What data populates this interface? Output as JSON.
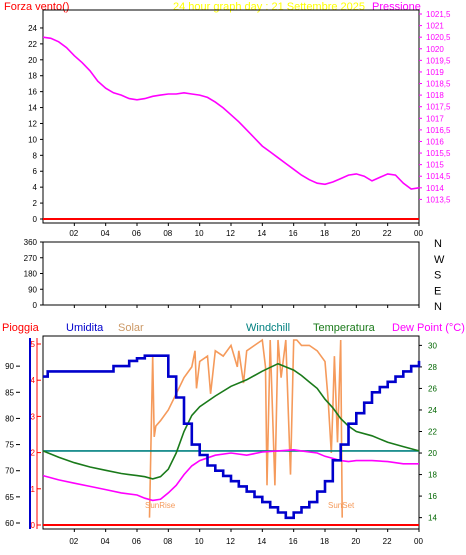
{
  "colors": {
    "bg": "#ffffff",
    "frame": "#000000",
    "wind_axis": "#ff0000",
    "title": "#ffff00",
    "pressure": "#ff00ff",
    "rain": "#ff0000",
    "humidity": "#0000cc",
    "solar": "#f59a5b",
    "windchill": "#008080",
    "temperature": "#1a7a1a",
    "dewpoint": "#ff00ff",
    "temp_axis": "#006600",
    "wind_dir_axis": "#000000"
  },
  "chart_data": [
    {
      "type": "line",
      "header": {
        "left": "Forza vento()",
        "center": "24 hour graph day : 21 Settembre 2025",
        "right": "Pressione"
      },
      "x_ticks": [
        "02",
        "04",
        "06",
        "08",
        "10",
        "12",
        "14",
        "16",
        "18",
        "20",
        "22",
        "00"
      ],
      "y_left": {
        "min": 0,
        "max": 25,
        "ticks": [
          "0",
          "2",
          "4",
          "6",
          "8",
          "10",
          "12",
          "14",
          "16",
          "18",
          "20",
          "22",
          "24"
        ]
      },
      "y_right": {
        "min": 1013.0,
        "max": 1021.5,
        "ticks": [
          "1013,5",
          "1014",
          "1014,5",
          "1015",
          "1015,5",
          "1016",
          "1016,5",
          "1017",
          "1017,5",
          "1018",
          "1018,5",
          "1019",
          "1019,5",
          "1020",
          "1020,5",
          "1021",
          "1021,5"
        ]
      },
      "series": [
        {
          "name": "Pressione",
          "color_key": "pressure",
          "axis": "right",
          "x": [
            0,
            0.5,
            1,
            1.5,
            2,
            2.5,
            3,
            3.5,
            4,
            4.5,
            5,
            5.5,
            6,
            6.5,
            7,
            7.5,
            8,
            8.5,
            9,
            9.5,
            10,
            10.5,
            11,
            11.5,
            12,
            12.5,
            13,
            13.5,
            14,
            14.5,
            15,
            15.5,
            16,
            16.5,
            17,
            17.5,
            18,
            18.5,
            19,
            19.5,
            20,
            20.5,
            21,
            21.5,
            22,
            22.5,
            23,
            23.5,
            24
          ],
          "y": [
            1020.5,
            1020.45,
            1020.3,
            1020.05,
            1019.7,
            1019.4,
            1019.05,
            1018.6,
            1018.3,
            1018.1,
            1018.0,
            1017.85,
            1017.8,
            1017.85,
            1017.95,
            1018.0,
            1018.05,
            1018.05,
            1018.1,
            1018.05,
            1018.0,
            1017.9,
            1017.7,
            1017.45,
            1017.15,
            1016.85,
            1016.5,
            1016.15,
            1015.8,
            1015.55,
            1015.3,
            1015.05,
            1014.8,
            1014.55,
            1014.35,
            1014.2,
            1014.15,
            1014.25,
            1014.4,
            1014.55,
            1014.6,
            1014.5,
            1014.3,
            1014.45,
            1014.6,
            1014.55,
            1014.2,
            1013.95,
            1014.0
          ]
        },
        {
          "name": "Forza vento",
          "color_key": "wind_axis",
          "axis": "left",
          "x": [
            0,
            24
          ],
          "y": [
            0,
            0
          ]
        }
      ]
    },
    {
      "type": "line",
      "x_ticks": [
        "02",
        "04",
        "06",
        "08",
        "10",
        "12",
        "14",
        "16",
        "18",
        "20",
        "22",
        "00"
      ],
      "y_left": {
        "min": 0,
        "max": 360,
        "ticks": [
          "0",
          "90",
          "180",
          "270",
          "360"
        ]
      },
      "right_labels": [
        "N",
        "W",
        "S",
        "E",
        "N"
      ],
      "series": []
    },
    {
      "type": "line",
      "legend": [
        "Pioggia",
        "Umidita",
        "Solar",
        "Windchill",
        "Temperatura",
        "Dew Point (°C)"
      ],
      "x_ticks": [
        "02",
        "04",
        "06",
        "08",
        "10",
        "12",
        "14",
        "16",
        "18",
        "20",
        "22",
        "00"
      ],
      "y_left": {
        "min": 60,
        "max": 95,
        "ticks": [
          "60",
          "65",
          "70",
          "75",
          "80",
          "85",
          "90"
        ]
      },
      "y_right": {
        "min": 13.5,
        "max": 30.5,
        "ticks": [
          "14",
          "16",
          "18",
          "20",
          "22",
          "24",
          "26",
          "28",
          "30"
        ]
      },
      "rain_axis": {
        "min": 0,
        "max": 5,
        "ticks": [
          "0",
          "1",
          "2",
          "3",
          "4",
          "5"
        ]
      },
      "annotations": [
        "SunRise",
        "SunSet"
      ],
      "series": [
        {
          "name": "Umidita",
          "color_key": "humidity",
          "axis": "left",
          "x": [
            0,
            0.3,
            1,
            4,
            4.5,
            5,
            5.5,
            6,
            6.2,
            6.5,
            7,
            7.5,
            8,
            8.5,
            9,
            9.5,
            10,
            10.5,
            11,
            11.5,
            12,
            12.5,
            13,
            13.5,
            14,
            14.5,
            15,
            15.5,
            16,
            16.5,
            17,
            17.5,
            18,
            18.5,
            19,
            19.5,
            20,
            20.5,
            21,
            21.5,
            22,
            22.5,
            23,
            23.5,
            24
          ],
          "y": [
            88,
            89,
            89,
            89,
            90,
            90,
            91,
            91.5,
            91.5,
            92,
            92,
            92,
            88,
            84,
            79,
            75,
            73,
            71,
            70,
            69,
            68,
            67,
            66,
            65,
            64,
            63,
            62,
            61,
            62,
            63,
            64,
            66,
            68,
            72,
            75,
            79,
            81,
            83,
            85,
            86,
            87,
            88,
            89,
            90,
            91
          ]
        },
        {
          "name": "Temperatura",
          "color_key": "temperature",
          "axis": "right",
          "x": [
            0,
            1,
            2,
            3,
            4,
            5,
            6,
            6.5,
            7,
            7.5,
            8,
            8.5,
            9,
            9.5,
            10,
            11,
            12,
            13,
            14,
            15,
            16,
            16.5,
            17,
            17.5,
            18,
            18.5,
            19,
            19.5,
            20,
            21,
            22,
            23,
            24
          ],
          "y": [
            20.2,
            19.6,
            19.1,
            18.7,
            18.4,
            18.1,
            17.9,
            17.8,
            17.6,
            17.8,
            18.5,
            20.0,
            22.0,
            23.5,
            24.3,
            25.3,
            26.2,
            26.8,
            27.6,
            28.3,
            27.7,
            27.2,
            26.6,
            26.0,
            25.0,
            24.2,
            23.2,
            22.5,
            22.0,
            21.6,
            21.0,
            20.6,
            20.2
          ]
        },
        {
          "name": "Dew Point",
          "color_key": "dewpoint",
          "axis": "right",
          "x": [
            0,
            1,
            2,
            3,
            4,
            5,
            6,
            6.5,
            7,
            7.5,
            8,
            8.5,
            9,
            9.5,
            10,
            11,
            12,
            13,
            14,
            15,
            16,
            16.5,
            17,
            17.5,
            18,
            18.5,
            19,
            19.5,
            20,
            21,
            22,
            23,
            24
          ],
          "y": [
            17.9,
            17.5,
            17.2,
            16.9,
            16.6,
            16.3,
            16.1,
            15.8,
            15.6,
            15.7,
            16.3,
            17.0,
            18.0,
            18.8,
            19.3,
            19.8,
            20.0,
            19.8,
            20.1,
            20.2,
            20.3,
            20.2,
            20.1,
            20.0,
            19.7,
            19.5,
            19.3,
            19.2,
            19.3,
            19.3,
            19.2,
            19.0,
            19.0
          ]
        },
        {
          "name": "Solar",
          "color_key": "solar",
          "axis": "right",
          "x": [
            6.8,
            7.0,
            7.1,
            7.2,
            7.5,
            8.0,
            8.5,
            9.0,
            9.5,
            9.7,
            9.8,
            10.0,
            10.5,
            10.7,
            11.0,
            11.5,
            12.0,
            12.4,
            12.5,
            12.8,
            13.0,
            13.5,
            14.0,
            14.2,
            14.3,
            14.5,
            14.8,
            15.0,
            15.2,
            15.5,
            15.8,
            16.0,
            16.2,
            16.5,
            17.0,
            17.5,
            18.0,
            18.2,
            18.4,
            18.5,
            18.6,
            18.8,
            19.0,
            19.1
          ],
          "y": [
            14.0,
            29.0,
            21.5,
            22.5,
            23.0,
            24.0,
            25.5,
            27.0,
            28.0,
            29.5,
            26.0,
            28.5,
            29.0,
            25.5,
            29.5,
            29.0,
            30.0,
            28.0,
            29.5,
            26.5,
            29.5,
            30.0,
            30.5,
            28.0,
            17.0,
            30.5,
            17.0,
            30.5,
            27.0,
            30.5,
            18.0,
            30.5,
            30.5,
            30.0,
            30.0,
            29.5,
            28.5,
            25.0,
            20.0,
            24.0,
            29.0,
            21.0,
            30.5,
            14.0
          ]
        },
        {
          "name": "Windchill",
          "color_key": "windchill",
          "axis": "right",
          "x": [
            0,
            24
          ],
          "y": [
            20.2,
            20.2
          ]
        },
        {
          "name": "Pioggia",
          "color_key": "rain",
          "axis": "rain",
          "x": [
            0,
            24
          ],
          "y": [
            0,
            0
          ]
        }
      ]
    }
  ]
}
